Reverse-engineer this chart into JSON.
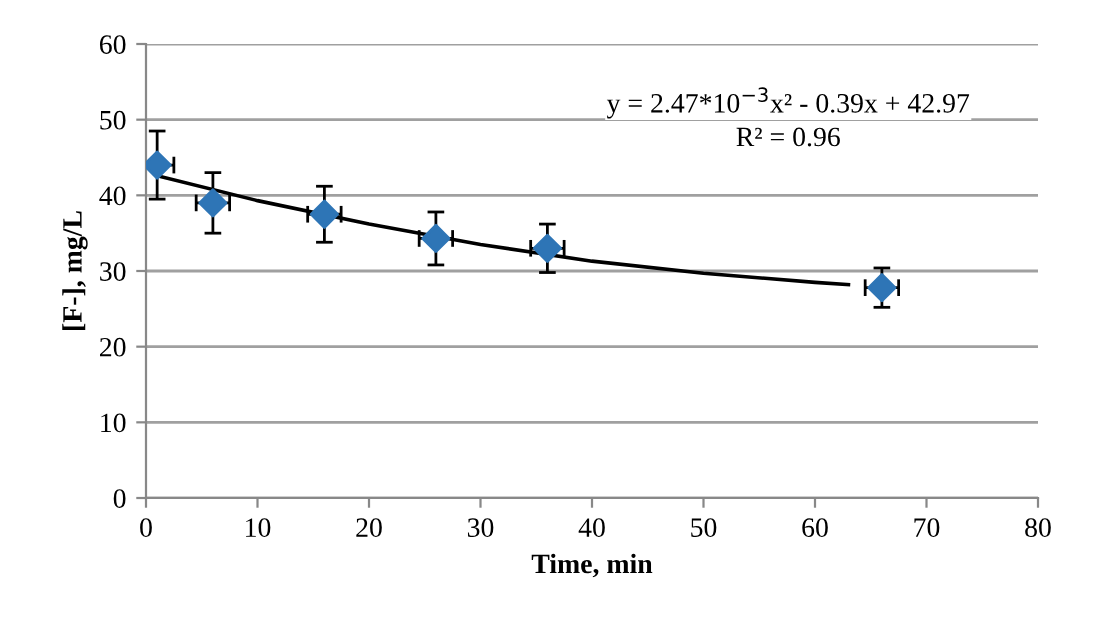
{
  "chart_data": {
    "type": "scatter",
    "xlabel": "Time, min",
    "ylabel": "[F-], mg/L",
    "annotations": [
      "y = 2.47*10$^{−3}$x² - 0.39x + 42.97",
      "R² = 0.96"
    ],
    "series": [
      {
        "color": "#2e75b6",
        "x": [
          1,
          6,
          16,
          26,
          36,
          66
        ],
        "values": [
          44,
          39,
          37.5,
          34.3,
          33,
          27.8
        ],
        "errors": [
          4.5,
          4,
          3.7,
          3.5,
          3.2,
          2.6
        ],
        "xerrors": [
          1.5,
          1.5,
          1.5,
          1.5,
          1.5,
          1.5
        ],
        "marker": "diamond"
      },
      {
        "type": "line",
        "color": "#000000",
        "x": [
          1,
          10,
          20,
          30,
          40,
          50,
          60,
          63
        ],
        "values": [
          42.6,
          39.3,
          36.2,
          33.5,
          31.3,
          29.7,
          28.5,
          28.2
        ],
        "marker": "none",
        "line_style": "solid"
      }
    ],
    "xlim": [
      0,
      80
    ],
    "ylim": [
      0,
      60
    ],
    "xticks": [
      0,
      10,
      20,
      30,
      40,
      50,
      60,
      70,
      80
    ],
    "yticks": [
      0,
      10,
      20,
      30,
      40,
      50,
      60
    ],
    "grid": "y",
    "legend": false
  }
}
